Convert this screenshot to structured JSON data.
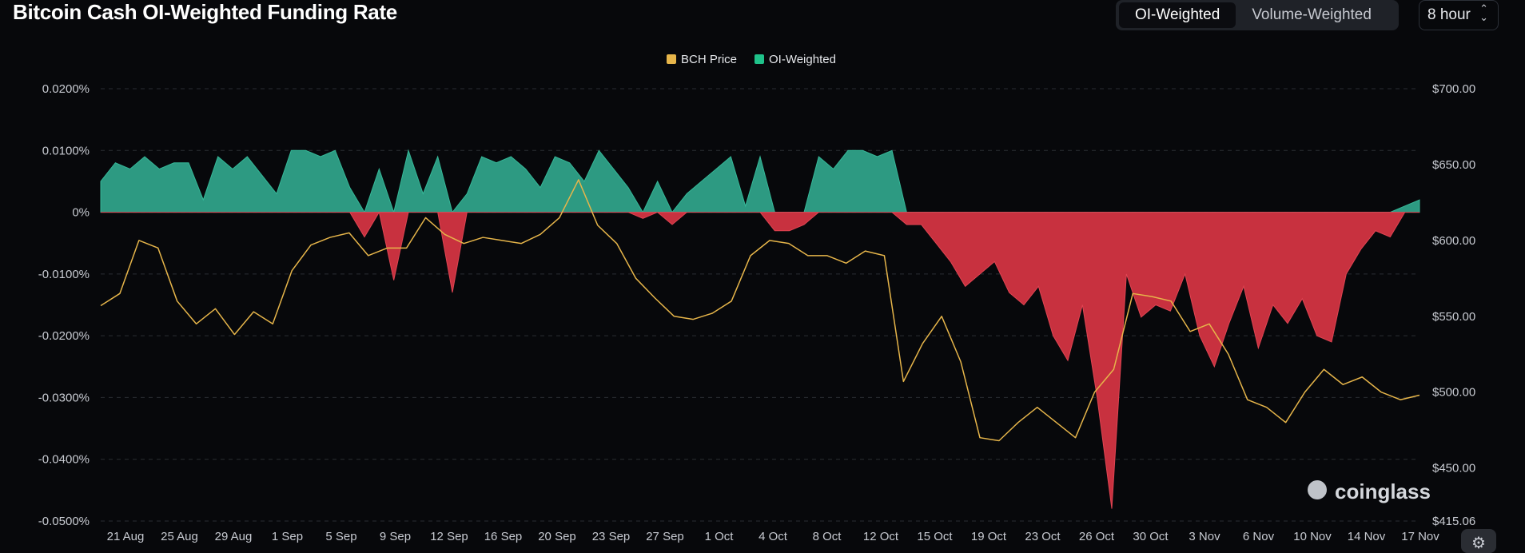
{
  "header": {
    "title": "Bitcoin Cash OI-Weighted Funding Rate",
    "toggle_options": [
      "OI-Weighted",
      "Volume-Weighted"
    ],
    "active_toggle": "OI-Weighted",
    "interval": "8 hour"
  },
  "watermark": "coinglass",
  "colors": {
    "background": "#07080b",
    "positive": "#2d9a82",
    "negative": "#c8313f",
    "price_line": "#e6b54a",
    "legend_oi": "#1fc28a",
    "grid": "#2a2d33"
  },
  "chart_data": {
    "type": "area",
    "legend": [
      {
        "name": "BCH Price",
        "color": "#e6b54a"
      },
      {
        "name": "OI-Weighted",
        "color": "#1fc28a"
      }
    ],
    "y_left": {
      "ticks": [
        0.0002,
        0.0001,
        0,
        -0.0001,
        -0.0002,
        -0.0003,
        -0.0004,
        -0.0005
      ],
      "tick_labels": [
        "0.0200%",
        "0.0100%",
        "0%",
        "-0.0100%",
        "-0.0200%",
        "-0.0300%",
        "-0.0400%",
        "-0.0500%"
      ],
      "range": [
        -0.0005,
        0.0002
      ]
    },
    "y_right": {
      "ticks": [
        700,
        650,
        600,
        550,
        500,
        450,
        415.06
      ],
      "tick_labels": [
        "$700.00",
        "$650.00",
        "$600.00",
        "$550.00",
        "$500.00",
        "$450.00",
        "$415.06"
      ],
      "range": [
        415.06,
        700
      ]
    },
    "x_tick_labels": [
      "21 Aug",
      "25 Aug",
      "29 Aug",
      "1 Sep",
      "5 Sep",
      "9 Sep",
      "12 Sep",
      "16 Sep",
      "20 Sep",
      "23 Sep",
      "27 Sep",
      "1 Oct",
      "4 Oct",
      "8 Oct",
      "12 Oct",
      "15 Oct",
      "19 Oct",
      "23 Oct",
      "26 Oct",
      "30 Oct",
      "3 Nov",
      "6 Nov",
      "10 Nov",
      "14 Nov",
      "17 Nov"
    ],
    "x_range_days": [
      "18 Aug",
      "17 Nov"
    ],
    "series": [
      {
        "name": "OI-Weighted",
        "unit": "funding rate",
        "points": [
          [
            0,
            5e-05
          ],
          [
            1,
            8e-05
          ],
          [
            2,
            7e-05
          ],
          [
            3,
            9e-05
          ],
          [
            4,
            7e-05
          ],
          [
            5,
            8e-05
          ],
          [
            6,
            8e-05
          ],
          [
            7,
            2e-05
          ],
          [
            8,
            9e-05
          ],
          [
            9,
            7e-05
          ],
          [
            10,
            9e-05
          ],
          [
            11,
            6e-05
          ],
          [
            12,
            3e-05
          ],
          [
            13,
            0.0001
          ],
          [
            14,
            0.0001
          ],
          [
            15,
            9e-05
          ],
          [
            16,
            0.0001
          ],
          [
            17,
            4e-05
          ],
          [
            18,
            -4e-05
          ],
          [
            19,
            7e-05
          ],
          [
            20,
            -0.00011
          ],
          [
            21,
            0.0001
          ],
          [
            22,
            3e-05
          ],
          [
            23,
            9e-05
          ],
          [
            24,
            -0.00013
          ],
          [
            25,
            3e-05
          ],
          [
            26,
            9e-05
          ],
          [
            27,
            8e-05
          ],
          [
            28,
            9e-05
          ],
          [
            29,
            7e-05
          ],
          [
            30,
            4e-05
          ],
          [
            31,
            9e-05
          ],
          [
            32,
            8e-05
          ],
          [
            33,
            5e-05
          ],
          [
            34,
            0.0001
          ],
          [
            35,
            7e-05
          ],
          [
            36,
            4e-05
          ],
          [
            37,
            -1e-05
          ],
          [
            38,
            5e-05
          ],
          [
            39,
            -2e-05
          ],
          [
            40,
            3e-05
          ],
          [
            41,
            5e-05
          ],
          [
            42,
            7e-05
          ],
          [
            43,
            9e-05
          ],
          [
            44,
            1e-05
          ],
          [
            45,
            9e-05
          ],
          [
            46,
            -3e-05
          ],
          [
            47,
            -3e-05
          ],
          [
            48,
            -2e-05
          ],
          [
            49,
            9e-05
          ],
          [
            50,
            7e-05
          ],
          [
            51,
            0.0001
          ],
          [
            52,
            0.0001
          ],
          [
            53,
            9e-05
          ],
          [
            54,
            0.0001
          ],
          [
            55,
            -2e-05
          ],
          [
            56,
            -2e-05
          ],
          [
            57,
            -5e-05
          ],
          [
            58,
            -8e-05
          ],
          [
            59,
            -0.00012
          ],
          [
            60,
            -0.0001
          ],
          [
            61,
            -8e-05
          ],
          [
            62,
            -0.00013
          ],
          [
            63,
            -0.00015
          ],
          [
            64,
            -0.00012
          ],
          [
            65,
            -0.0002
          ],
          [
            66,
            -0.00024
          ],
          [
            67,
            -0.00015
          ],
          [
            68,
            -0.0003
          ],
          [
            69,
            -0.00048
          ],
          [
            70,
            -0.0001
          ],
          [
            71,
            -0.00017
          ],
          [
            72,
            -0.00015
          ],
          [
            73,
            -0.00016
          ],
          [
            74,
            -0.0001
          ],
          [
            75,
            -0.0002
          ],
          [
            76,
            -0.00025
          ],
          [
            77,
            -0.00018
          ],
          [
            78,
            -0.00012
          ],
          [
            79,
            -0.00022
          ],
          [
            80,
            -0.00015
          ],
          [
            81,
            -0.00018
          ],
          [
            82,
            -0.00014
          ],
          [
            83,
            -0.0002
          ],
          [
            84,
            -0.00021
          ],
          [
            85,
            -0.0001
          ],
          [
            86,
            -6e-05
          ],
          [
            87,
            -3e-05
          ],
          [
            88,
            -4e-05
          ],
          [
            89,
            1e-05
          ],
          [
            90,
            2e-05
          ]
        ]
      },
      {
        "name": "BCH Price",
        "unit": "USD",
        "points": [
          [
            0,
            557
          ],
          [
            1,
            565
          ],
          [
            2,
            600
          ],
          [
            3,
            595
          ],
          [
            4,
            560
          ],
          [
            5,
            545
          ],
          [
            6,
            555
          ],
          [
            7,
            538
          ],
          [
            8,
            553
          ],
          [
            9,
            545
          ],
          [
            10,
            580
          ],
          [
            11,
            597
          ],
          [
            12,
            602
          ],
          [
            13,
            605
          ],
          [
            14,
            590
          ],
          [
            15,
            595
          ],
          [
            16,
            595
          ],
          [
            17,
            615
          ],
          [
            18,
            604
          ],
          [
            19,
            598
          ],
          [
            20,
            602
          ],
          [
            21,
            600
          ],
          [
            22,
            598
          ],
          [
            23,
            604
          ],
          [
            24,
            615
          ],
          [
            25,
            640
          ],
          [
            26,
            610
          ],
          [
            27,
            598
          ],
          [
            28,
            575
          ],
          [
            29,
            562
          ],
          [
            30,
            550
          ],
          [
            31,
            548
          ],
          [
            32,
            552
          ],
          [
            33,
            560
          ],
          [
            34,
            590
          ],
          [
            35,
            600
          ],
          [
            36,
            598
          ],
          [
            37,
            590
          ],
          [
            38,
            590
          ],
          [
            39,
            585
          ],
          [
            40,
            593
          ],
          [
            41,
            590
          ],
          [
            42,
            507
          ],
          [
            43,
            532
          ],
          [
            44,
            550
          ],
          [
            45,
            520
          ],
          [
            46,
            470
          ],
          [
            47,
            468
          ],
          [
            48,
            480
          ],
          [
            49,
            490
          ],
          [
            50,
            480
          ],
          [
            51,
            470
          ],
          [
            52,
            500
          ],
          [
            53,
            515
          ],
          [
            54,
            565
          ],
          [
            55,
            563
          ],
          [
            56,
            560
          ],
          [
            57,
            540
          ],
          [
            58,
            545
          ],
          [
            59,
            525
          ],
          [
            60,
            495
          ],
          [
            61,
            490
          ],
          [
            62,
            480
          ],
          [
            63,
            500
          ],
          [
            64,
            515
          ],
          [
            65,
            505
          ],
          [
            66,
            510
          ],
          [
            67,
            500
          ],
          [
            68,
            495
          ],
          [
            69,
            498
          ]
        ]
      }
    ]
  }
}
